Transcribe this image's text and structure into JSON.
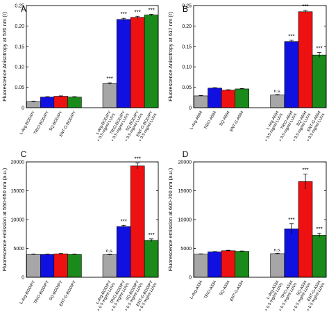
{
  "figure": {
    "colors": {
      "gray": "#a6a6a6",
      "blue": "#1010e0",
      "red": "#ee1111",
      "green": "#1a8a1a",
      "errorbar": "#000000"
    }
  },
  "chart_data": [
    {
      "panel_letter": "A",
      "type": "bar",
      "ylabel": "Fluorescence Anisotropy at 570 nm (r)",
      "ylim": [
        0,
        0.25
      ],
      "yticks": [
        "0",
        "0.05",
        "0.10",
        "0.15",
        "0.20",
        "0.25"
      ],
      "categories": [
        "L-Arg-BODIPY",
        "TRIO-BODIPY",
        "SQ-BODIPY",
        "ENT-G-BODIPY",
        "L-Arg-BODIPY + 0.5 mg/ml LUVs",
        "TRIO-BODIPY + 0.5 mg/ml LUVs",
        "SQ-BODIPY + 0.5 mg/ml LUVs",
        "ENT-G-BODIPY + 0.5 mg/ml LUVs"
      ],
      "values": [
        0.015,
        0.026,
        0.028,
        0.026,
        0.059,
        0.216,
        0.221,
        0.227
      ],
      "errors": [
        0.001,
        0.001,
        0.001,
        0.001,
        0.002,
        0.003,
        0.003,
        0.002
      ],
      "colors": [
        "gray",
        "blue",
        "red",
        "green",
        "gray",
        "blue",
        "red",
        "green"
      ],
      "annotations": [
        "",
        "",
        "",
        "",
        "***",
        "***",
        "***",
        "***"
      ]
    },
    {
      "panel_letter": "B",
      "type": "bar",
      "ylabel": "Fluorescence Anisotropy at 617 nm (r)",
      "ylim": [
        0,
        0.25
      ],
      "yticks": [
        "0",
        "0.05",
        "0.10",
        "0.15",
        "0.20",
        "0.25"
      ],
      "categories": [
        "L-Arg-A594",
        "TRIO-A594",
        "SQ-A594",
        "ENT-G-A594",
        "L-Arg-A594 + 0.5 mg/ml LUVs",
        "TRIO-A594 + 0.5 mg/ml LUVs",
        "SQ-A594 + 0.5 mg/ml LUVs",
        "ENT-G-A594 + 0.5 mg/ml LUVs"
      ],
      "values": [
        0.029,
        0.048,
        0.043,
        0.046,
        0.031,
        0.162,
        0.235,
        0.129
      ],
      "errors": [
        0.001,
        0.001,
        0.001,
        0.001,
        0.001,
        0.003,
        0.003,
        0.006
      ],
      "colors": [
        "gray",
        "blue",
        "red",
        "green",
        "gray",
        "blue",
        "red",
        "green"
      ],
      "annotations": [
        "",
        "",
        "",
        "",
        "n.s.",
        "***",
        "***",
        "***"
      ]
    },
    {
      "panel_letter": "C",
      "type": "bar",
      "ylabel": "Fluorescence emission at 550-650 nm (a.u.)",
      "ylim": [
        0,
        20000
      ],
      "yticks": [
        "0",
        "5000",
        "10000",
        "15000",
        "20000"
      ],
      "categories": [
        "L-Arg-BODIPY",
        "TRIO-BODIPY",
        "SQ-BODIPY",
        "ENT-G-BODIPY",
        "L-Arg-BODIPY + 0.5 mg/ml LUVs",
        "TRIO-BODIPY + 0.5 mg/ml LUVs",
        "SQ-BODIPY + 0.5 mg/ml LUVs",
        "ENT-G-BODIPY + 0.5 mg/ml LUVs"
      ],
      "values": [
        3950,
        3950,
        4050,
        3950,
        3900,
        8800,
        19300,
        6400
      ],
      "errors": [
        60,
        60,
        80,
        60,
        80,
        200,
        500,
        250
      ],
      "colors": [
        "gray",
        "blue",
        "red",
        "green",
        "gray",
        "blue",
        "red",
        "green"
      ],
      "annotations": [
        "",
        "",
        "",
        "",
        "n.s.",
        "***",
        "***",
        "***"
      ]
    },
    {
      "panel_letter": "D",
      "type": "bar",
      "ylabel": "Fluorescence emission at 600-700 nm (a.u.)",
      "ylim": [
        0,
        20000
      ],
      "yticks": [
        "0",
        "5000",
        "10000",
        "15000",
        "20000"
      ],
      "categories": [
        "L-Arg-A594",
        "TRIO-A594",
        "SQ-A594",
        "ENT-G-A594",
        "L-Arg-A594 + 0.5 mg/ml LUVs",
        "TRIO-A594 + 0.5 mg/ml LUVs",
        "SQ-A594 + 0.5 mg/ml LUVs",
        "ENT-G-A594 + 0.5 mg/ml LUVs"
      ],
      "values": [
        4000,
        4400,
        4600,
        4500,
        4100,
        8400,
        16600,
        7300
      ],
      "errors": [
        60,
        60,
        80,
        60,
        80,
        900,
        1300,
        350
      ],
      "colors": [
        "gray",
        "blue",
        "red",
        "green",
        "gray",
        "blue",
        "red",
        "green"
      ],
      "annotations": [
        "",
        "",
        "",
        "",
        "n.s.",
        "***",
        "***",
        "***"
      ]
    }
  ]
}
